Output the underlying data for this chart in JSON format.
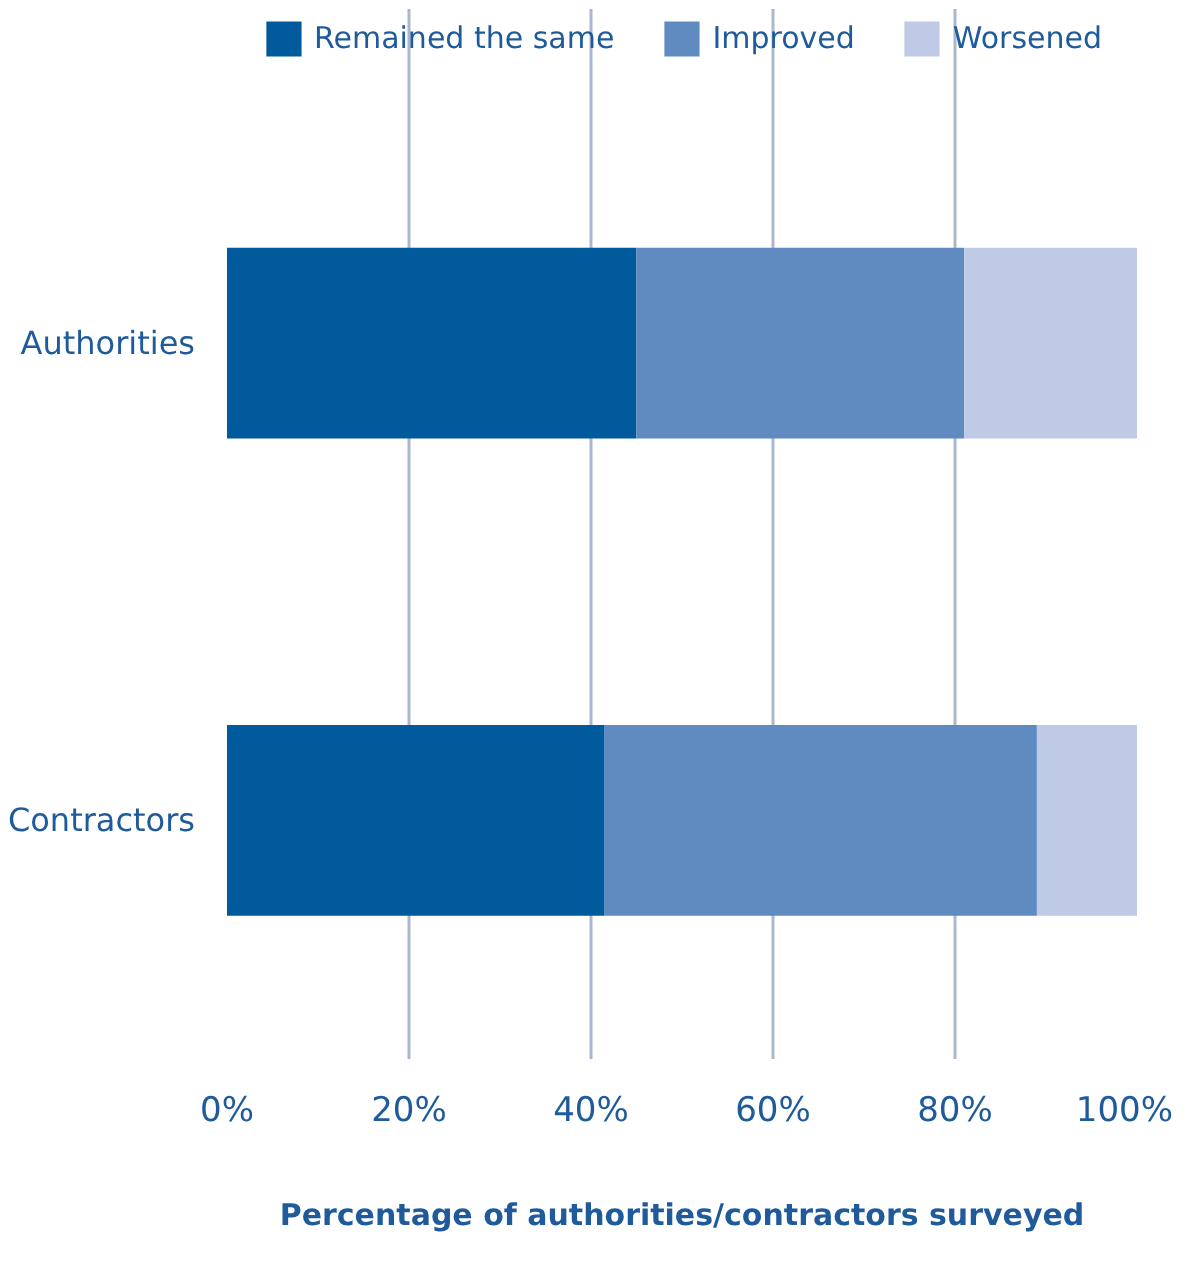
{
  "chart_data": {
    "type": "bar",
    "orientation": "horizontal",
    "stacked": true,
    "categories": [
      "Authorities",
      "Contractors"
    ],
    "series": [
      {
        "name": "Remained the same",
        "color": "#005a9c",
        "values": [
          45,
          41.5
        ]
      },
      {
        "name": "Improved",
        "color": "#5f8bc0",
        "values": [
          36,
          47.5
        ]
      },
      {
        "name": "Worsened",
        "color": "#bfcae6",
        "values": [
          19,
          11
        ]
      }
    ],
    "xlim": [
      0,
      100
    ],
    "xticks": [
      {
        "value": 0,
        "label": "0%"
      },
      {
        "value": 20,
        "label": "20%"
      },
      {
        "value": 40,
        "label": "40%"
      },
      {
        "value": 60,
        "label": "60%"
      },
      {
        "value": 80,
        "label": "80%"
      },
      {
        "value": 100,
        "label": "100%"
      }
    ],
    "xlabel": "Percentage of authorities/contractors surveyed",
    "grid": "x",
    "legend": "top"
  }
}
